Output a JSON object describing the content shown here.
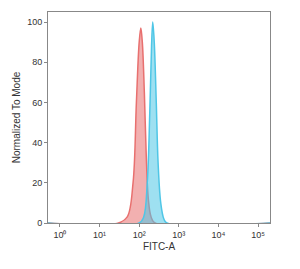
{
  "chart_data": {
    "type": "area",
    "x_label": "FITC-A",
    "y_label": "Normalized To Mode",
    "log": "x",
    "grid": false,
    "xlim": [
      0.5,
      200000
    ],
    "xticks": [
      {
        "value": 1,
        "label": "10⁰"
      },
      {
        "value": 10,
        "label": "10¹"
      },
      {
        "value": 100,
        "label": "10²"
      },
      {
        "value": 1000,
        "label": "10³"
      },
      {
        "value": 10000,
        "label": "10⁴"
      },
      {
        "value": 100000,
        "label": "10⁵"
      }
    ],
    "ylim": [
      0,
      105
    ],
    "yticks": [
      0,
      20,
      40,
      60,
      80,
      100
    ],
    "series": [
      {
        "color": "#e8706f",
        "x": [
          0.5,
          30,
          50,
          70,
          85,
          100,
          110,
          120,
          135,
          150,
          170,
          200,
          250,
          200000
        ],
        "values": [
          0,
          0,
          3,
          20,
          60,
          90,
          97,
          90,
          65,
          35,
          12,
          3,
          0,
          0
        ]
      },
      {
        "color": "#4fc6e6",
        "x": [
          0.5,
          100,
          130,
          160,
          185,
          205,
          220,
          240,
          270,
          300,
          350,
          420,
          500,
          200000
        ],
        "values": [
          0,
          0,
          3,
          20,
          55,
          88,
          100,
          90,
          60,
          30,
          10,
          2,
          0,
          0
        ]
      }
    ]
  }
}
